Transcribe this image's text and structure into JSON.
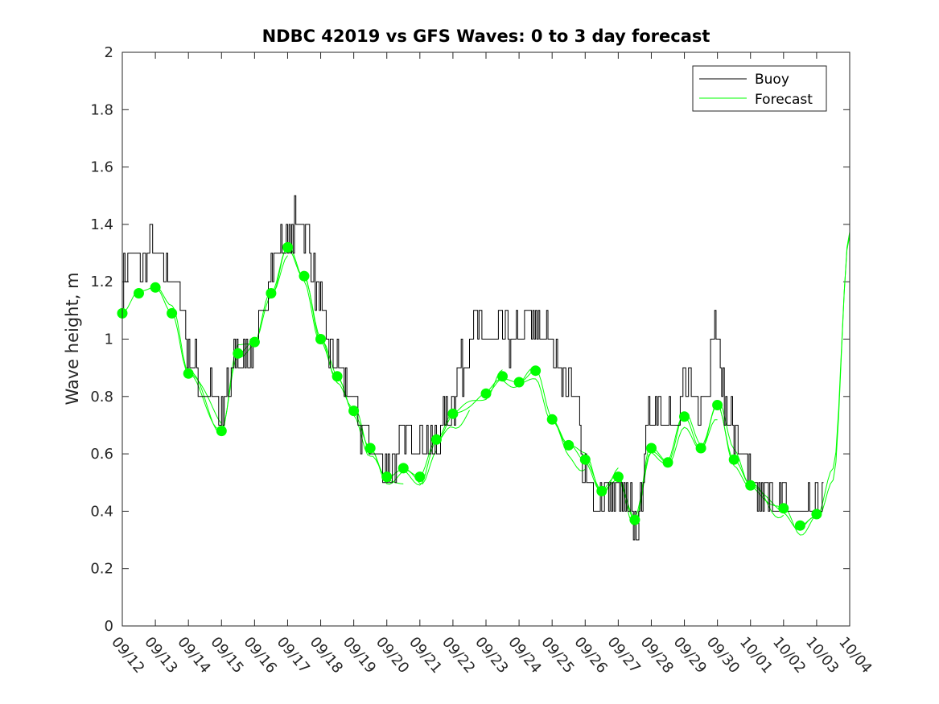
{
  "chart_data": {
    "type": "line",
    "title": "NDBC 42019 vs GFS Waves: 0 to 3 day forecast",
    "xlabel": "",
    "ylabel": "Wave height, m",
    "ylim": [
      0,
      2
    ],
    "yticks": [
      "0",
      "0.2",
      "0.4",
      "0.6",
      "0.8",
      "1",
      "1.2",
      "1.4",
      "1.6",
      "1.8",
      "2"
    ],
    "xlim_days": [
      0,
      22
    ],
    "xticks": [
      "09/12",
      "09/13",
      "09/14",
      "09/15",
      "09/16",
      "09/17",
      "09/18",
      "09/19",
      "09/20",
      "09/21",
      "09/22",
      "09/23",
      "09/24",
      "09/25",
      "09/26",
      "09/27",
      "09/28",
      "09/29",
      "09/30",
      "10/01",
      "10/02",
      "10/03",
      "10/04"
    ],
    "legend": {
      "position": "top-right",
      "entries": [
        "Buoy",
        "Forecast"
      ]
    },
    "colors": {
      "buoy": "#000000",
      "forecast": "#00ff00"
    },
    "buoy_anchors": [
      [
        0.0,
        1.2
      ],
      [
        0.3,
        1.28
      ],
      [
        0.7,
        1.25
      ],
      [
        0.85,
        1.35
      ],
      [
        1.0,
        1.25
      ],
      [
        1.5,
        1.2
      ],
      [
        1.75,
        1.15
      ],
      [
        2.0,
        0.95
      ],
      [
        2.4,
        0.85
      ],
      [
        2.7,
        0.8
      ],
      [
        3.0,
        0.72
      ],
      [
        3.2,
        0.85
      ],
      [
        3.5,
        0.95
      ],
      [
        4.0,
        0.95
      ],
      [
        4.3,
        1.15
      ],
      [
        4.7,
        1.3
      ],
      [
        5.0,
        1.32
      ],
      [
        5.3,
        1.42
      ],
      [
        5.6,
        1.35
      ],
      [
        5.9,
        1.15
      ],
      [
        6.3,
        0.95
      ],
      [
        6.7,
        0.85
      ],
      [
        7.0,
        0.75
      ],
      [
        7.3,
        0.68
      ],
      [
        7.7,
        0.6
      ],
      [
        8.0,
        0.55
      ],
      [
        8.3,
        0.6
      ],
      [
        8.6,
        0.68
      ],
      [
        9.0,
        0.65
      ],
      [
        9.4,
        0.62
      ],
      [
        9.7,
        0.7
      ],
      [
        10.0,
        0.8
      ],
      [
        10.3,
        0.9
      ],
      [
        10.6,
        1.05
      ],
      [
        11.0,
        0.98
      ],
      [
        11.3,
        1.02
      ],
      [
        11.7,
        1.0
      ],
      [
        12.0,
        1.0
      ],
      [
        12.3,
        1.05
      ],
      [
        12.7,
        1.02
      ],
      [
        13.0,
        0.98
      ],
      [
        13.3,
        0.9
      ],
      [
        13.7,
        0.82
      ],
      [
        14.0,
        0.5
      ],
      [
        14.3,
        0.43
      ],
      [
        14.6,
        0.45
      ],
      [
        15.0,
        0.45
      ],
      [
        15.3,
        0.4
      ],
      [
        15.6,
        0.38
      ],
      [
        15.9,
        0.7
      ],
      [
        16.2,
        0.78
      ],
      [
        16.5,
        0.72
      ],
      [
        16.8,
        0.65
      ],
      [
        17.0,
        0.88
      ],
      [
        17.3,
        0.8
      ],
      [
        17.6,
        0.8
      ],
      [
        17.9,
        1.02
      ],
      [
        18.3,
        0.75
      ],
      [
        18.7,
        0.6
      ],
      [
        19.0,
        0.5
      ],
      [
        19.3,
        0.45
      ],
      [
        19.7,
        0.45
      ],
      [
        20.0,
        0.42
      ],
      [
        20.4,
        0.4
      ],
      [
        20.8,
        0.42
      ],
      [
        21.0,
        0.45
      ],
      [
        21.2,
        0.5
      ]
    ],
    "forecast_markers": [
      [
        0.0,
        1.09
      ],
      [
        0.5,
        1.16
      ],
      [
        1.0,
        1.18
      ],
      [
        1.5,
        1.09
      ],
      [
        2.0,
        0.88
      ],
      [
        3.0,
        0.68
      ],
      [
        3.5,
        0.95
      ],
      [
        4.0,
        0.99
      ],
      [
        4.5,
        1.16
      ],
      [
        5.0,
        1.32
      ],
      [
        5.5,
        1.22
      ],
      [
        6.0,
        1.0
      ],
      [
        6.5,
        0.87
      ],
      [
        7.0,
        0.75
      ],
      [
        7.5,
        0.62
      ],
      [
        8.0,
        0.52
      ],
      [
        8.5,
        0.55
      ],
      [
        9.0,
        0.52
      ],
      [
        9.5,
        0.65
      ],
      [
        10.0,
        0.74
      ],
      [
        11.0,
        0.81
      ],
      [
        11.5,
        0.87
      ],
      [
        12.0,
        0.85
      ],
      [
        12.5,
        0.89
      ],
      [
        13.0,
        0.72
      ],
      [
        13.5,
        0.63
      ],
      [
        14.0,
        0.58
      ],
      [
        14.5,
        0.47
      ],
      [
        15.0,
        0.52
      ],
      [
        15.5,
        0.37
      ],
      [
        16.0,
        0.62
      ],
      [
        16.5,
        0.57
      ],
      [
        17.0,
        0.73
      ],
      [
        17.5,
        0.62
      ],
      [
        18.0,
        0.77
      ],
      [
        18.5,
        0.58
      ],
      [
        19.0,
        0.49
      ],
      [
        20.0,
        0.41
      ],
      [
        20.5,
        0.35
      ],
      [
        21.0,
        0.39
      ]
    ]
  }
}
